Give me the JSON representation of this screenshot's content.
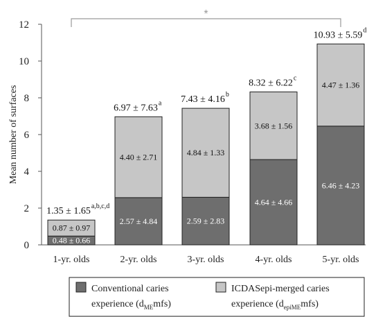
{
  "chart_data": {
    "type": "bar",
    "stacked": true,
    "categories": [
      "1-yr. olds",
      "2-yr. olds",
      "3-yr. olds",
      "4-yr. olds",
      "5-yr. olds"
    ],
    "ylabel": "Mean number of surfaces",
    "ylim": [
      0,
      12
    ],
    "yticks": [
      "0",
      "2",
      "4",
      "6",
      "8",
      "10",
      "12"
    ],
    "grid": false,
    "legend_position": "bottom",
    "series": [
      {
        "name": "Conventional caries experience (dMEmfs)",
        "legend_line1": "Conventional caries",
        "legend_line2_pre": "experience (d",
        "legend_line2_sub": "ME",
        "legend_line2_post": "mfs)",
        "color": "#6e6e6e",
        "label_color": "#ffffff",
        "values": [
          0.48,
          2.57,
          2.59,
          4.64,
          6.46
        ],
        "labels": [
          "0.48 ± 0.66",
          "2.57 ± 4.84",
          "2.59 ± 2.83",
          "4.64 ± 4.66",
          "6.46 ± 4.23"
        ]
      },
      {
        "name": "ICDASepi-merged caries experience (depiMEmfs)",
        "legend_line1": "ICDASepi-merged caries",
        "legend_line2_pre": "experience (d",
        "legend_line2_sub": "epiME",
        "legend_line2_post": "mfs)",
        "color": "#c6c6c6",
        "label_color": "#111111",
        "values": [
          0.87,
          4.4,
          4.84,
          3.68,
          4.47
        ],
        "labels": [
          "0.87 ± 0.97",
          "4.40 ± 2.71",
          "4.84 ± 1.33",
          "3.68 ± 1.56",
          "4.47 ± 1.36"
        ]
      }
    ],
    "totals": {
      "values": [
        1.35,
        6.97,
        7.43,
        8.32,
        10.93
      ],
      "labels": [
        "1.35 ± 1.65",
        "6.97 ± 7.63",
        "7.43 ± 4.16",
        "8.32 ± 6.22",
        "10.93 ± 5.59"
      ],
      "superscripts": [
        "a,b,c,d",
        "a",
        "b",
        "c",
        "d"
      ]
    },
    "significance": {
      "symbol": "*",
      "from": "1-yr. olds",
      "to": "5-yr. olds"
    }
  }
}
